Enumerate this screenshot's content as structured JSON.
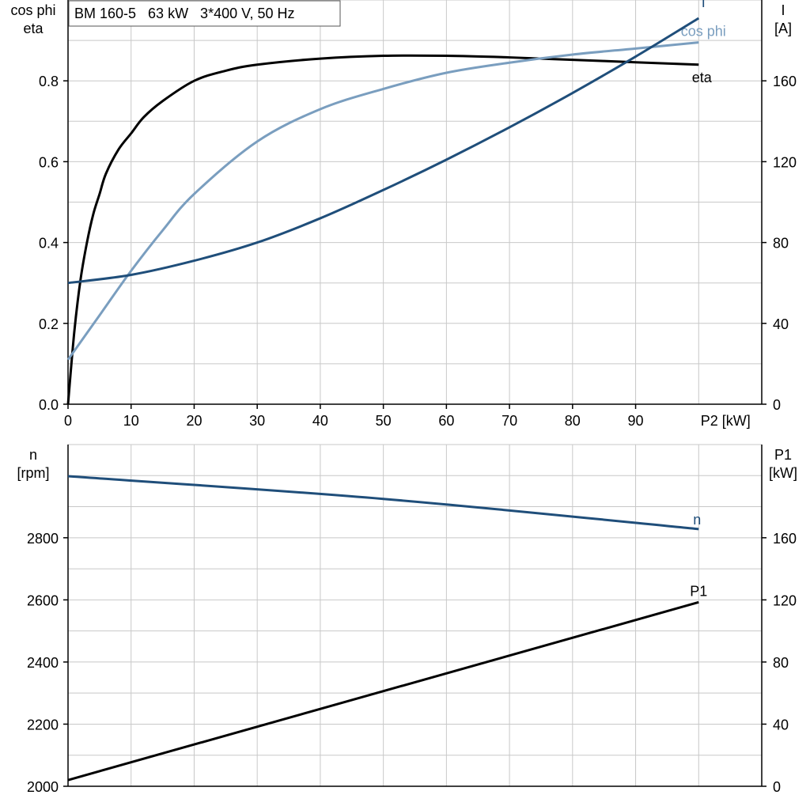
{
  "chart_data": [
    {
      "type": "line",
      "title": "BM 160-5   63 kW   3*400 V, 50 Hz",
      "xlabel": "P2 [kW]",
      "ylabel_left": [
        "cos phi",
        "eta"
      ],
      "ylabel_right": [
        "I",
        "[A]"
      ],
      "xlim": [
        0,
        110
      ],
      "ylim_left": [
        0,
        1.0
      ],
      "ylim_right": [
        0,
        200
      ],
      "x_ticks": [
        0,
        10,
        20,
        30,
        40,
        50,
        60,
        70,
        80,
        90
      ],
      "y_ticks_left": [
        0.0,
        0.2,
        0.4,
        0.6,
        0.8
      ],
      "y_tick_labels_left": [
        "0.0",
        "0.2",
        "0.4",
        "0.6",
        "0.8"
      ],
      "y_ticks_right": [
        0,
        40,
        80,
        120,
        160
      ],
      "grid": true,
      "series": [
        {
          "name": "eta",
          "axis": "left",
          "color": "#000000",
          "x": [
            0,
            1,
            2,
            3,
            4,
            5,
            6,
            8,
            10,
            12,
            15,
            20,
            25,
            30,
            40,
            50,
            60,
            70,
            80,
            90,
            100
          ],
          "y": [
            0.0,
            0.18,
            0.31,
            0.4,
            0.47,
            0.52,
            0.57,
            0.63,
            0.67,
            0.71,
            0.75,
            0.8,
            0.825,
            0.84,
            0.855,
            0.862,
            0.862,
            0.858,
            0.852,
            0.846,
            0.84
          ]
        },
        {
          "name": "cos phi",
          "axis": "left",
          "color": "#7a9ebf",
          "x": [
            0,
            5,
            10,
            15,
            20,
            30,
            40,
            50,
            60,
            70,
            80,
            90,
            100
          ],
          "y": [
            0.11,
            0.22,
            0.33,
            0.43,
            0.52,
            0.65,
            0.73,
            0.78,
            0.82,
            0.845,
            0.865,
            0.88,
            0.895
          ]
        },
        {
          "name": "I",
          "axis": "right",
          "color": "#1f4e7a",
          "x": [
            0,
            10,
            20,
            30,
            40,
            50,
            60,
            70,
            80,
            90,
            100
          ],
          "y": [
            60,
            64,
            71,
            80,
            92,
            106,
            121,
            137,
            154,
            172,
            191
          ]
        }
      ]
    },
    {
      "type": "line",
      "xlim": [
        0,
        110
      ],
      "ylabel_left": [
        "n",
        "[rpm]"
      ],
      "ylabel_right": [
        "P1",
        "[kW]"
      ],
      "ylim_left": [
        2000,
        3100
      ],
      "ylim_right": [
        0,
        220
      ],
      "y_ticks_left": [
        2000,
        2200,
        2400,
        2600,
        2800
      ],
      "y_ticks_right": [
        0,
        40,
        80,
        120,
        160
      ],
      "grid": true,
      "series": [
        {
          "name": "n",
          "axis": "left",
          "color": "#1f4e7a",
          "x": [
            0,
            50,
            100
          ],
          "y": [
            2998,
            2925,
            2828
          ]
        },
        {
          "name": "P1",
          "axis": "right",
          "color": "#000000",
          "x": [
            0,
            100
          ],
          "y": [
            4,
            118.5
          ]
        }
      ]
    }
  ]
}
